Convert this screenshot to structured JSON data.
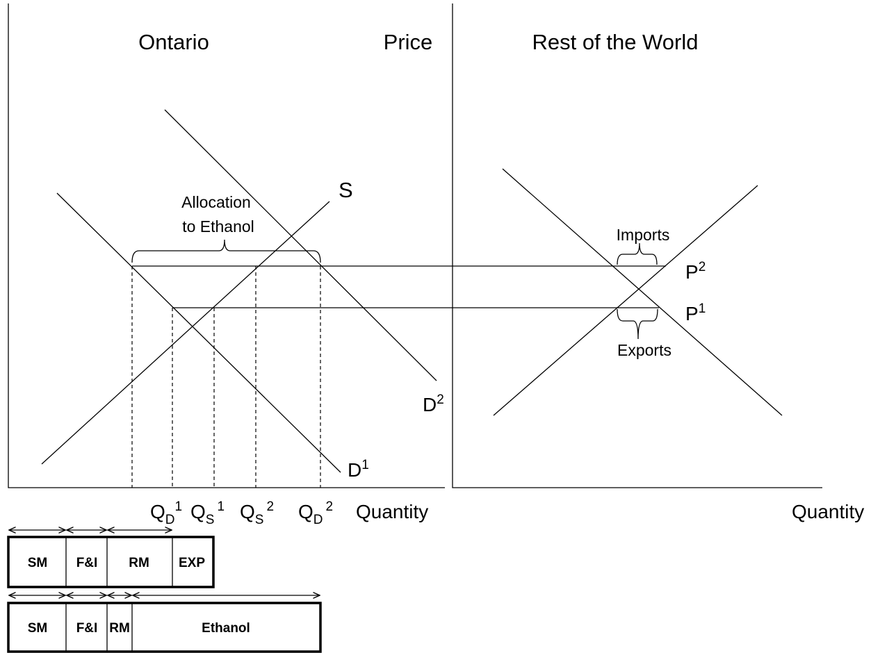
{
  "left_panel": {
    "title": "Ontario",
    "y_axis_label": "Price",
    "x_axis_label": "Quantity",
    "supply_label": "S",
    "demand_labels": [
      {
        "base": "D",
        "sup": "1"
      },
      {
        "base": "D",
        "sup": "2"
      }
    ],
    "brace_label": [
      "Allocation",
      "to Ethanol"
    ],
    "quantity_labels": [
      {
        "base": "Q",
        "sub": "D",
        "sup": "1"
      },
      {
        "base": "Q",
        "sub": "S",
        "sup": "1"
      },
      {
        "base": "Q",
        "sub": "S",
        "sup": "2"
      },
      {
        "base": "Q",
        "sub": "D",
        "sup": "2"
      }
    ]
  },
  "right_panel": {
    "title": "Rest of the World",
    "x_axis_label": "Quantity",
    "price_labels": [
      {
        "base": "P",
        "sup": "2"
      },
      {
        "base": "P",
        "sup": "1"
      }
    ],
    "imports_label": "Imports",
    "exports_label": "Exports"
  },
  "allocation_bars": [
    [
      "SM",
      "F&I",
      "RM",
      "EXP"
    ],
    [
      "SM",
      "F&I",
      "RM",
      "Ethanol"
    ]
  ]
}
